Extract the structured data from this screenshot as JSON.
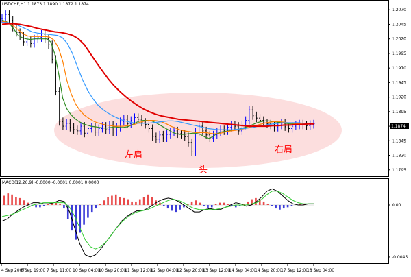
{
  "window": {
    "price_header": "USDCHF,H1  1.1873 1.1890 1.1872 1.1874",
    "indicator_header": "MACD(12,26,9) -0.0000 -0.0001 0.0001 0.0000"
  },
  "annotations": {
    "left_shoulder": "左肩",
    "head": "头",
    "right_shoulder": "右肩"
  },
  "current_price_label": "1.1874",
  "colors": {
    "background": "#ffffff",
    "bull_candle": "#0000ff",
    "bear_candle": "#000000",
    "ma_red": "#e00000",
    "ma_blue": "#3399ff",
    "ma_orange": "#ff7f00",
    "ma_green": "#2e8b22",
    "ellipse_fill": "#fbd3d3",
    "macd_positive": "#e84a4a",
    "macd_negative": "#3c3cd8",
    "macd_line": "#000000",
    "signal_line": "#33cc33",
    "annotation_text": "#ff0000"
  },
  "chart_data": [
    {
      "type": "line",
      "title": "USDCHF,H1  1.1873 1.1890 1.1872 1.1874",
      "x_ticks": [
        "4 Sep 2007",
        "6 Sep 19:00",
        "7 Sep 11:00",
        "10 Sep 04:00",
        "10 Sep 20:00",
        "11 Sep 12:00",
        "12 Sep 04:00",
        "12 Sep 20:00",
        "13 Sep 12:00",
        "14 Sep 04:00",
        "14 Sep 20:00",
        "17 Sep 12:00",
        "18 Sep 04:00"
      ],
      "y_ticks": [
        "1.2070",
        "1.2045",
        "1.2020",
        "1.1995",
        "1.1970",
        "1.1945",
        "1.1920",
        "1.1895",
        "1.1870",
        "1.1845",
        "1.1820",
        "1.1795"
      ],
      "ylim": [
        1.179,
        1.2075
      ],
      "legend": "none",
      "grid": false,
      "series": [
        {
          "name": "price",
          "values": [
            1.2055,
            1.2062,
            1.2052,
            1.204,
            1.2031,
            1.2025,
            1.2015,
            1.2018,
            1.2012,
            1.202,
            1.2022,
            1.2028,
            1.202,
            1.201,
            1.1985,
            1.193,
            1.1878,
            1.187,
            1.1875,
            1.1868,
            1.1864,
            1.1862,
            1.187,
            1.1858,
            1.1866,
            1.1869,
            1.186,
            1.1866,
            1.187,
            1.1864,
            1.1872,
            1.186,
            1.1868,
            1.1878,
            1.1882,
            1.1874,
            1.188,
            1.1885,
            1.1882,
            1.1877,
            1.1873,
            1.1866,
            1.1852,
            1.1848,
            1.1855,
            1.185,
            1.1856,
            1.186,
            1.1862,
            1.1857,
            1.1856,
            1.1852,
            1.1842,
            1.1826,
            1.186,
            1.187,
            1.1862,
            1.1855,
            1.185,
            1.1855,
            1.186,
            1.1864,
            1.1862,
            1.1868,
            1.1872,
            1.187,
            1.1862,
            1.1872,
            1.188,
            1.1898,
            1.1888,
            1.1884,
            1.188,
            1.1876,
            1.1874,
            1.1872,
            1.1868,
            1.1872,
            1.1875,
            1.1869,
            1.1866,
            1.187,
            1.1872,
            1.1874,
            1.1872,
            1.1871,
            1.1873,
            1.1874
          ]
        },
        {
          "name": "",
          "values": [
            1.2052,
            1.205,
            1.2045,
            1.2036,
            1.2026,
            1.2022,
            1.202,
            1.2019,
            1.202,
            1.202,
            1.202,
            1.202,
            1.2015,
            1.1995,
            1.196,
            1.1918,
            1.19,
            1.189,
            1.1883,
            1.1878,
            1.1874,
            1.1872,
            1.187,
            1.1869,
            1.1868,
            1.1867,
            1.1867,
            1.1868,
            1.1869,
            1.1868,
            1.1868,
            1.1869,
            1.1872,
            1.1876,
            1.1879,
            1.188,
            1.188,
            1.1879,
            1.1876,
            1.1872,
            1.1868,
            1.1864,
            1.186,
            1.1857,
            1.1856,
            1.1856,
            1.1857,
            1.1858,
            1.1858,
            1.1856,
            1.1852,
            1.1849,
            1.1852,
            1.1857,
            1.186,
            1.1861,
            1.1862,
            1.1863,
            1.1864,
            1.1866,
            1.1868,
            1.187,
            1.1873,
            1.1876,
            1.1878,
            1.1879,
            1.1879,
            1.1878,
            1.1877,
            1.1876,
            1.1875,
            1.1874,
            1.1874,
            1.1873,
            1.1873,
            1.1873,
            1.1874,
            1.1874
          ]
        },
        {
          "name": "",
          "values": [
            1.205,
            1.2049,
            1.2046,
            1.204,
            1.2034,
            1.2028,
            1.2025,
            1.2024,
            1.2024,
            1.2024,
            1.2024,
            1.2023,
            1.2018,
            1.2005,
            1.1982,
            1.1948,
            1.1925,
            1.1908,
            1.1897,
            1.1889,
            1.1884,
            1.1879,
            1.1876,
            1.1874,
            1.1872,
            1.1871,
            1.187,
            1.187,
            1.187,
            1.1871,
            1.1872,
            1.1874,
            1.1877,
            1.1879,
            1.188,
            1.188,
            1.1879,
            1.1877,
            1.1874,
            1.187,
            1.1867,
            1.1864,
            1.1862,
            1.1861,
            1.186,
            1.1859,
            1.1859,
            1.1859,
            1.1858,
            1.1857,
            1.1857,
            1.1859,
            1.1861,
            1.1862,
            1.1863,
            1.1864,
            1.1866,
            1.1868,
            1.187,
            1.1872,
            1.1874,
            1.1876,
            1.1877,
            1.1878,
            1.1878,
            1.1877,
            1.1876,
            1.1875,
            1.1875,
            1.1874,
            1.1874,
            1.1874,
            1.1874
          ]
        },
        {
          "name": "",
          "values": [
            1.2048,
            1.2048,
            1.2047,
            1.2044,
            1.204,
            1.2036,
            1.2032,
            1.203,
            1.2029,
            1.2028,
            1.2027,
            1.2026,
            1.2022,
            1.2012,
            1.1995,
            1.1972,
            1.195,
            1.1932,
            1.1918,
            1.1907,
            1.1899,
            1.1893,
            1.1888,
            1.1884,
            1.188,
            1.1878,
            1.1876,
            1.1875,
            1.1875,
            1.1875,
            1.1876,
            1.1877,
            1.1878,
            1.1879,
            1.1879,
            1.1878,
            1.1876,
            1.1874,
            1.1872,
            1.187,
            1.1868,
            1.1866,
            1.1865,
            1.1864,
            1.1864,
            1.1864,
            1.1864,
            1.1865,
            1.1866,
            1.1867,
            1.1868,
            1.187,
            1.1871,
            1.1873,
            1.1874,
            1.1875,
            1.1876,
            1.1876,
            1.1876,
            1.1876,
            1.1875,
            1.1875,
            1.1875
          ]
        },
        {
          "name": "",
          "values": [
            1.2045,
            1.2046,
            1.2046,
            1.2045,
            1.2043,
            1.2041,
            1.2038,
            1.2036,
            1.2034,
            1.2032,
            1.2031,
            1.2029,
            1.2026,
            1.202,
            1.201,
            1.1995,
            1.198,
            1.1966,
            1.1952,
            1.194,
            1.193,
            1.1921,
            1.1913,
            1.1906,
            1.19,
            1.1895,
            1.1891,
            1.1888,
            1.1886,
            1.1884,
            1.1882,
            1.1881,
            1.188,
            1.1879,
            1.1878,
            1.1877,
            1.1876,
            1.1875,
            1.1874,
            1.1873,
            1.1872,
            1.1871,
            1.187,
            1.187,
            1.187,
            1.187,
            1.1871,
            1.1871,
            1.1872,
            1.1872,
            1.1873,
            1.1873,
            1.1874,
            1.1874
          ]
        }
      ]
    },
    {
      "type": "bar",
      "title": "MACD(12,26,9) -0.0000 -0.0001 0.0001 0.0000",
      "y_ticks": [
        "0.00",
        "-0.0045"
      ],
      "ylim": [
        -0.0048,
        0.0016
      ],
      "legend": "none",
      "series": [
        {
          "name": "histogram",
          "values": [
            0.0008,
            0.001,
            0.0009,
            0.0007,
            0.0006,
            0.0004,
            0.0002,
            -0.0001,
            -0.0002,
            -0.0002,
            -0.0001,
            0.0001,
            0.0002,
            0.0002,
            0.0001,
            -0.0003,
            -0.0012,
            -0.0022,
            -0.003,
            -0.0024,
            -0.0017,
            -0.0011,
            -0.0006,
            -0.0003,
            0.0001,
            0.0004,
            0.0007,
            0.0008,
            0.0009,
            0.0007,
            0.0006,
            0.0005,
            0.0003,
            0.0003,
            0.0005,
            0.0007,
            0.0009,
            0.0007,
            0.0004,
            0.0002,
            -0.0001,
            -0.0003,
            -0.0005,
            -0.0006,
            -0.0004,
            -0.0002,
            0.0001,
            0.0003,
            0.0004,
            0.0002,
            -0.0001,
            -0.0003,
            -0.0002,
            0.0001,
            0.0002,
            0.0002,
            0.0001,
            -0.0001,
            -0.0002,
            -0.0001,
            0.0001,
            0.0003,
            0.0005,
            0.0006,
            0.0005,
            0.0003,
            0.0001,
            -0.0001,
            -0.0003,
            -0.0004,
            -0.0003,
            -0.0002,
            -0.0001,
            0.0,
            0.0001,
            0.0001,
            0.0,
            0.0
          ]
        },
        {
          "name": "macd",
          "values": [
            -0.0014,
            -0.0012,
            -0.0008,
            -0.0005,
            -0.0002,
            0.0,
            0.0002,
            0.0002,
            0.0001,
            0.0001,
            0.0002,
            0.0004,
            0.0003,
            -0.0006,
            -0.002,
            -0.0034,
            -0.0043,
            -0.0045,
            -0.0043,
            -0.0038,
            -0.0032,
            -0.0026,
            -0.002,
            -0.0014,
            -0.001,
            -0.0007,
            -0.0005,
            -0.0005,
            -0.0003,
            0.0,
            0.0003,
            0.0005,
            0.0006,
            0.0005,
            0.0003,
            0.0,
            -0.0003,
            -0.0006,
            -0.0006,
            -0.0004,
            -0.0003,
            -0.0004,
            -0.0004,
            -0.0002,
            0.0,
            0.0002,
            0.0001,
            -0.0001,
            0.0,
            0.0003,
            0.0007,
            0.0012,
            0.0014,
            0.0012,
            0.0008,
            0.0004,
            0.0001,
            0.0,
            0.0,
            0.0001,
            0.0001
          ]
        },
        {
          "name": "signal",
          "values": [
            -0.001,
            -0.0009,
            -0.0008,
            -0.0006,
            -0.0004,
            -0.0002,
            0.0,
            0.0001,
            0.0002,
            0.0002,
            0.0002,
            0.0002,
            0.0002,
            -0.0002,
            -0.001,
            -0.002,
            -0.003,
            -0.0036,
            -0.0038,
            -0.0036,
            -0.0032,
            -0.0026,
            -0.002,
            -0.0015,
            -0.0011,
            -0.0008,
            -0.0006,
            -0.0005,
            -0.0004,
            -0.0002,
            0.0,
            0.0002,
            0.0004,
            0.0005,
            0.0004,
            0.0002,
            -0.0001,
            -0.0003,
            -0.0004,
            -0.0004,
            -0.0004,
            -0.0004,
            -0.0003,
            -0.0002,
            -0.0001,
            0.0,
            0.0,
            0.0,
            0.0001,
            0.0002,
            0.0005,
            0.0009,
            0.0012,
            0.0012,
            0.001,
            0.0007,
            0.0004,
            0.0002,
            0.0001,
            0.0001,
            0.0001
          ]
        }
      ]
    }
  ]
}
